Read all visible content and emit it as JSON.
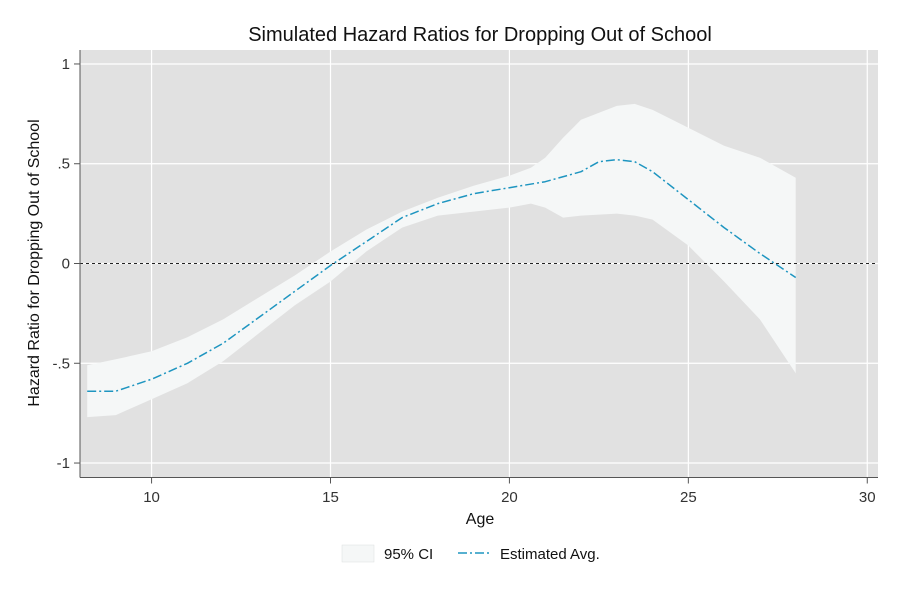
{
  "chart_data": {
    "type": "area",
    "title": "Simulated Hazard Ratios for Dropping Out of School",
    "xlabel": "Age",
    "ylabel": "Hazard Ratio for Dropping Out of School",
    "xlim": [
      8,
      30.3
    ],
    "ylim": [
      -1.07,
      1.07
    ],
    "x_ticks": [
      10,
      15,
      20,
      25,
      30
    ],
    "y_ticks": [
      -1,
      -0.5,
      0,
      0.5,
      1
    ],
    "x_tick_labels": [
      "10",
      "15",
      "20",
      "25",
      "30"
    ],
    "y_tick_labels": [
      "-1",
      "-.5",
      "0",
      ".5",
      "1"
    ],
    "reference_line": {
      "y": 0,
      "style": "dashed"
    },
    "grid": true,
    "legend_position": "bottom",
    "colors": {
      "plot_background": "#e1e1e1",
      "ci_fill": "#f5f7f7",
      "line": "#1e95c0",
      "grid": "#ffffff",
      "reference": "#222222"
    },
    "series": [
      {
        "name": "95% CI",
        "kind": "band",
        "x": [
          8.2,
          9,
          10,
          11,
          12,
          13,
          14,
          15,
          16,
          17,
          18,
          19,
          20,
          20.6,
          21,
          21.5,
          22,
          23,
          23.5,
          24,
          25,
          26,
          27,
          28
        ],
        "upper": [
          -0.51,
          -0.48,
          -0.44,
          -0.37,
          -0.28,
          -0.17,
          -0.06,
          0.06,
          0.17,
          0.26,
          0.33,
          0.39,
          0.44,
          0.48,
          0.53,
          0.63,
          0.72,
          0.79,
          0.8,
          0.77,
          0.68,
          0.59,
          0.53,
          0.43
        ],
        "lower": [
          -0.77,
          -0.76,
          -0.68,
          -0.6,
          -0.49,
          -0.35,
          -0.21,
          -0.09,
          0.06,
          0.18,
          0.24,
          0.26,
          0.28,
          0.3,
          0.28,
          0.23,
          0.24,
          0.25,
          0.24,
          0.22,
          0.09,
          -0.09,
          -0.28,
          -0.55
        ]
      },
      {
        "name": "Estimated Avg.",
        "kind": "line",
        "x": [
          8.2,
          9,
          10,
          11,
          12,
          13,
          14,
          15,
          16,
          17,
          18,
          19,
          20,
          21,
          22,
          22.5,
          23,
          23.5,
          24,
          25,
          26,
          27,
          28
        ],
        "values": [
          -0.64,
          -0.64,
          -0.58,
          -0.5,
          -0.4,
          -0.27,
          -0.14,
          -0.01,
          0.11,
          0.23,
          0.3,
          0.35,
          0.38,
          0.41,
          0.46,
          0.51,
          0.52,
          0.51,
          0.46,
          0.32,
          0.18,
          0.05,
          -0.07
        ]
      }
    ]
  }
}
